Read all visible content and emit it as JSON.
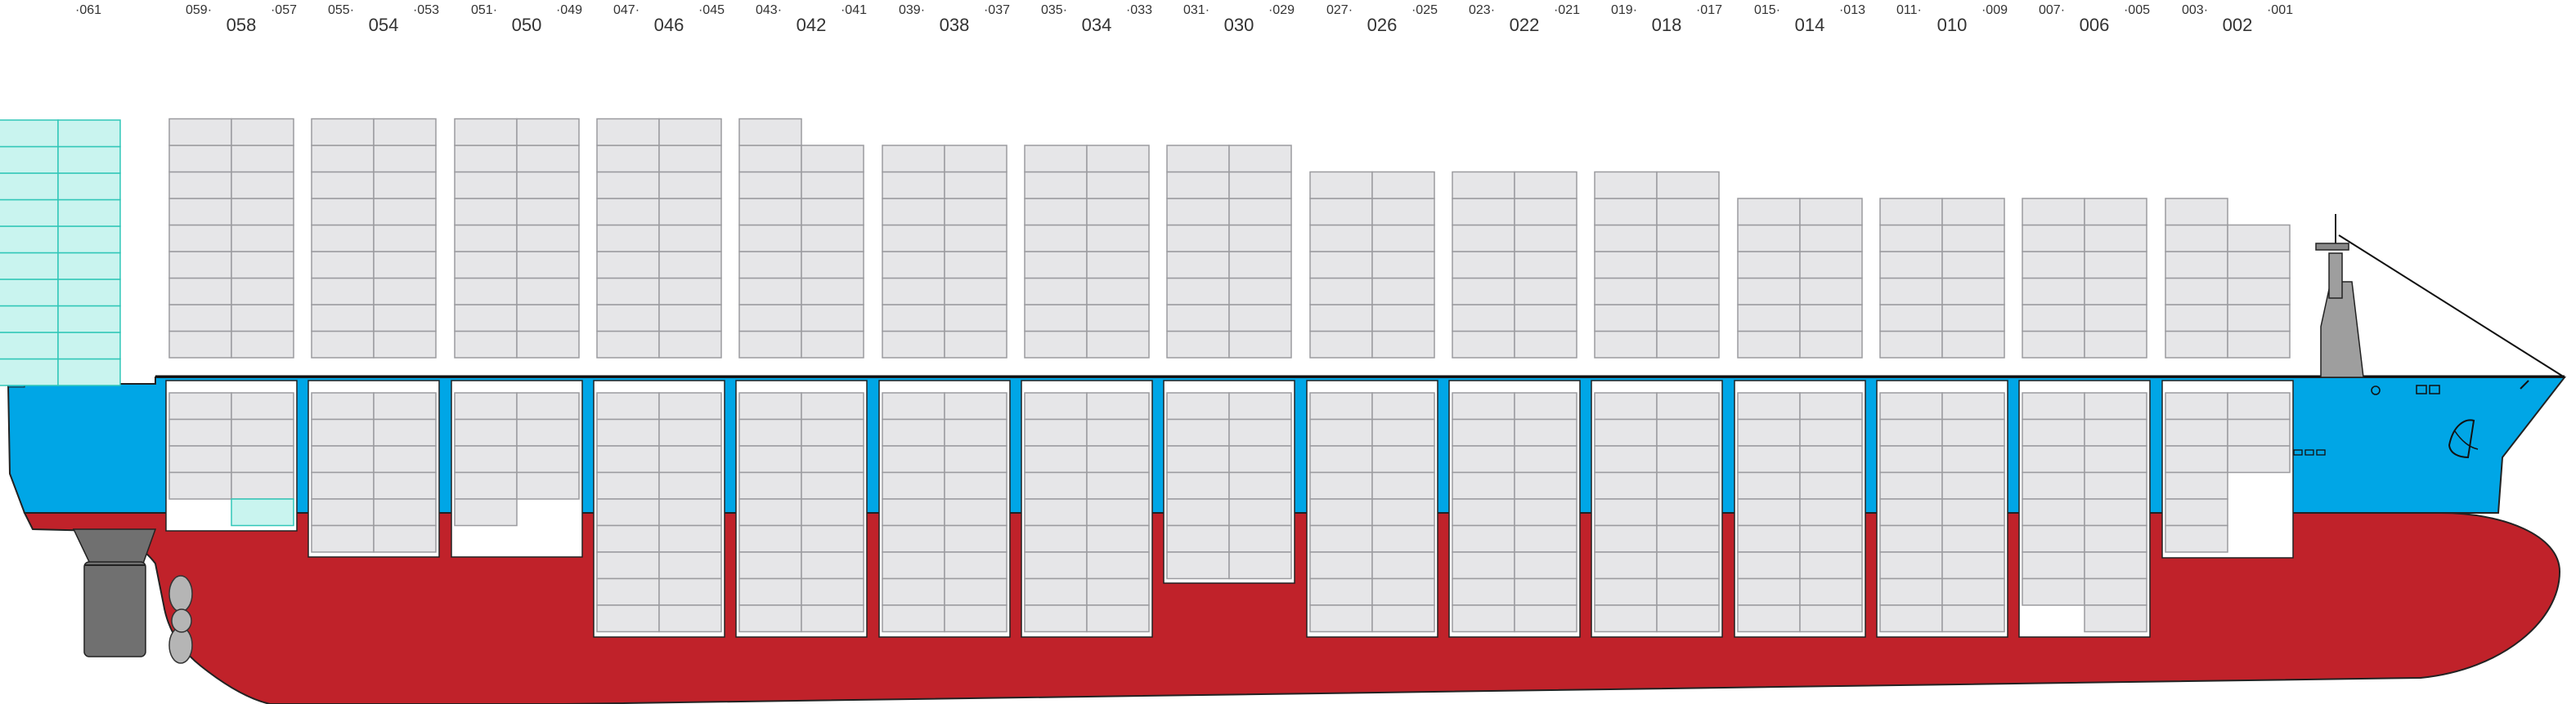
{
  "bays": [
    {
      "left_sub": "059",
      "main": "058",
      "right_sub": "057"
    },
    {
      "left_sub": "055",
      "main": "054",
      "right_sub": "053"
    },
    {
      "left_sub": "051",
      "main": "050",
      "right_sub": "049"
    },
    {
      "left_sub": "047",
      "main": "046",
      "right_sub": "045"
    },
    {
      "left_sub": "043",
      "main": "042",
      "right_sub": "041"
    },
    {
      "left_sub": "039",
      "main": "038",
      "right_sub": "037"
    },
    {
      "left_sub": "035",
      "main": "034",
      "right_sub": "033"
    },
    {
      "left_sub": "031",
      "main": "030",
      "right_sub": "029"
    },
    {
      "left_sub": "027",
      "main": "026",
      "right_sub": "025"
    },
    {
      "left_sub": "023",
      "main": "022",
      "right_sub": "021"
    },
    {
      "left_sub": "019",
      "main": "018",
      "right_sub": "017"
    },
    {
      "left_sub": "015",
      "main": "014",
      "right_sub": "013"
    },
    {
      "left_sub": "011",
      "main": "010",
      "right_sub": "009"
    },
    {
      "left_sub": "007",
      "main": "006",
      "right_sub": "005"
    },
    {
      "left_sub": "003",
      "main": "002",
      "right_sub": "001"
    }
  ],
  "aft_bay": {
    "label": "061"
  },
  "colors": {
    "hull_red": "#c0222a",
    "hull_blue": "#00a6e6",
    "container_fill": "#e6e6e8",
    "container_stroke": "#9b9b9f",
    "reefer_fill": "#c9f4ef",
    "reefer_stroke": "#31c7b8",
    "rudder": "#707070",
    "propeller": "#b5b5b5"
  },
  "icons": {
    "funnel_emblem": "star-emblem-icon",
    "anchor": "anchor-icon",
    "mast": "mast-icon"
  }
}
